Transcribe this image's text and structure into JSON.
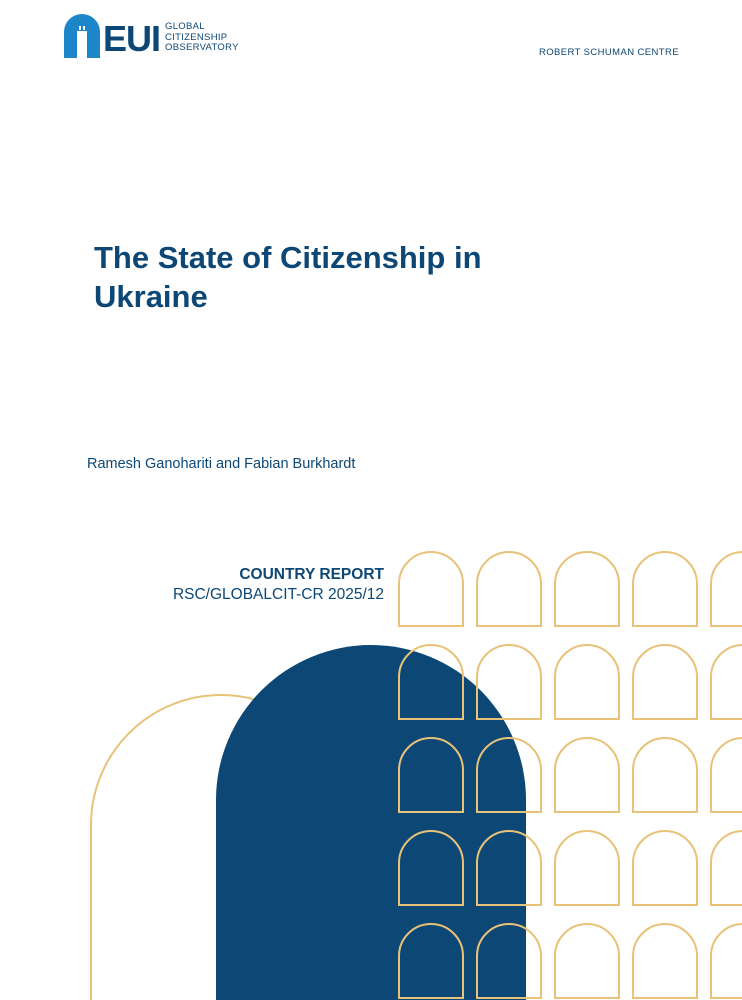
{
  "header": {
    "logo_word": "EUI",
    "logo_sub": [
      "GLOBAL",
      "CITIZENSHIP",
      "OBSERVATORY"
    ],
    "centre": "ROBERT SCHUMAN CENTRE"
  },
  "title_lines": [
    "The State of Citizenship in",
    "Ukraine"
  ],
  "authors": "Ramesh Ganohariti and Fabian Burkhardt",
  "report": {
    "label": "COUNTRY REPORT",
    "code": "RSC/GLOBALCIT-CR 2025/12"
  },
  "colors": {
    "navy": "#0c4775",
    "logo_blue": "#1c86c9",
    "gold": "#e8c278"
  }
}
